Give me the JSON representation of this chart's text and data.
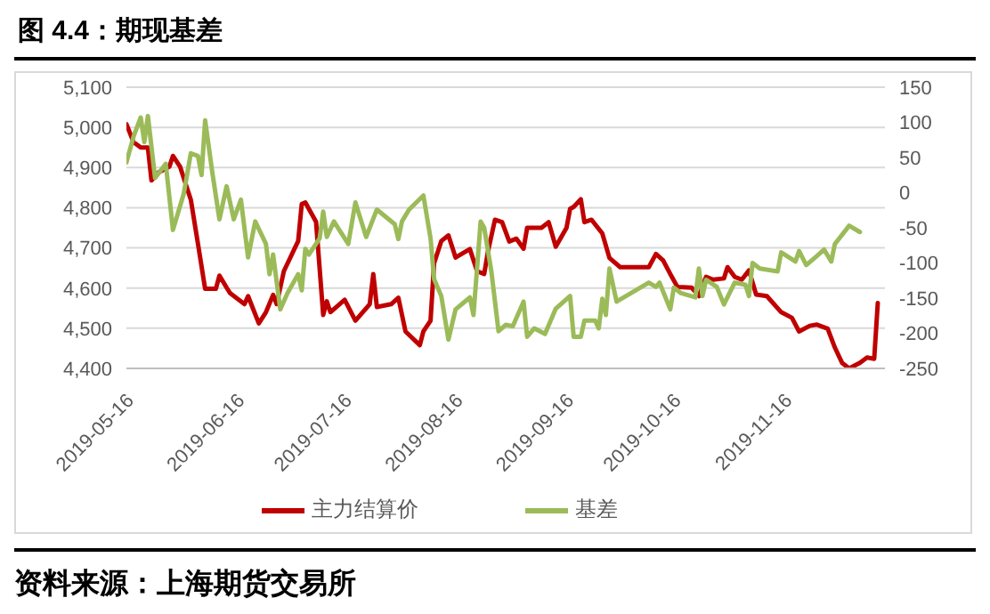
{
  "chart_data": {
    "type": "line",
    "title": "图 4.4：期现基差",
    "annotations": [
      "资料来源：上海期货交易所"
    ],
    "xlim": [
      "2019-05-16",
      "2019-12-14"
    ],
    "xticks": [
      "2019-05-16",
      "2019-06-16",
      "2019-07-16",
      "2019-08-16",
      "2019-09-16",
      "2019-10-16",
      "2019-11-16"
    ],
    "ylim": [
      4400,
      5100
    ],
    "yticks": [
      {
        "value": 4400,
        "label": "4,400"
      },
      {
        "value": 4500,
        "label": "4,500"
      },
      {
        "value": 4600,
        "label": "4,600"
      },
      {
        "value": 4700,
        "label": "4,700"
      },
      {
        "value": 4800,
        "label": "4,800"
      },
      {
        "value": 4900,
        "label": "4,900"
      },
      {
        "value": 5000,
        "label": "5,000"
      },
      {
        "value": 5100,
        "label": "5,100"
      }
    ],
    "y2lim": [
      -250,
      150
    ],
    "y2ticks": [
      -250,
      -200,
      -150,
      -100,
      -50,
      0,
      50,
      100,
      150
    ],
    "grid": "y",
    "legend": "bottom",
    "marker": "none",
    "line_style": "solid",
    "series": [
      {
        "name": "主力结算价",
        "color": "#c00000",
        "x": [
          "2019-05-16",
          "2019-05-18",
          "2019-05-20",
          "2019-05-22",
          "2019-05-23",
          "2019-05-25",
          "2019-05-28",
          "2019-05-29",
          "2019-05-31",
          "2019-06-03",
          "2019-06-05",
          "2019-06-07",
          "2019-06-10",
          "2019-06-11",
          "2019-06-13",
          "2019-06-14",
          "2019-06-18",
          "2019-06-19",
          "2019-06-22",
          "2019-06-24",
          "2019-06-26",
          "2019-06-27",
          "2019-06-29",
          "2019-07-03",
          "2019-07-04",
          "2019-07-05",
          "2019-07-08",
          "2019-07-10",
          "2019-07-11",
          "2019-07-12",
          "2019-07-16",
          "2019-07-19",
          "2019-07-23",
          "2019-07-24",
          "2019-07-25",
          "2019-07-29",
          "2019-07-31",
          "2019-08-02",
          "2019-08-06",
          "2019-08-07",
          "2019-08-09",
          "2019-08-10",
          "2019-08-12",
          "2019-08-14",
          "2019-08-16",
          "2019-08-20",
          "2019-08-22",
          "2019-08-24",
          "2019-08-25",
          "2019-08-27",
          "2019-08-29",
          "2019-08-31",
          "2019-09-02",
          "2019-09-04",
          "2019-09-05",
          "2019-09-07",
          "2019-09-09",
          "2019-09-11",
          "2019-09-13",
          "2019-09-16",
          "2019-09-17",
          "2019-09-18",
          "2019-09-20",
          "2019-09-21",
          "2019-09-23",
          "2019-09-26",
          "2019-09-28",
          "2019-10-01",
          "2019-10-09",
          "2019-10-11",
          "2019-10-13",
          "2019-10-15",
          "2019-10-17",
          "2019-10-21",
          "2019-10-23",
          "2019-10-25",
          "2019-10-27",
          "2019-10-30",
          "2019-10-31",
          "2019-11-02",
          "2019-11-04",
          "2019-11-06",
          "2019-11-08",
          "2019-11-11",
          "2019-11-15",
          "2019-11-18",
          "2019-11-20",
          "2019-11-23",
          "2019-11-25",
          "2019-11-28",
          "2019-11-30",
          "2019-12-02",
          "2019-12-04",
          "2019-12-07",
          "2019-12-09",
          "2019-12-11",
          "2019-12-12"
        ],
        "values": [
          5008,
          4963,
          4950,
          4950,
          4868,
          4888,
          4902,
          4929,
          4902,
          4820,
          4710,
          4598,
          4598,
          4631,
          4601,
          4587,
          4560,
          4580,
          4512,
          4540,
          4583,
          4560,
          4642,
          4717,
          4809,
          4813,
          4765,
          4533,
          4567,
          4540,
          4571,
          4519,
          4560,
          4635,
          4553,
          4560,
          4576,
          4492,
          4458,
          4492,
          4519,
          4662,
          4717,
          4731,
          4676,
          4697,
          4642,
          4635,
          4689,
          4770,
          4764,
          4716,
          4723,
          4698,
          4750,
          4750,
          4750,
          4764,
          4703,
          4750,
          4797,
          4802,
          4821,
          4764,
          4770,
          4736,
          4675,
          4652,
          4652,
          4685,
          4669,
          4635,
          4603,
          4601,
          4580,
          4628,
          4621,
          4624,
          4652,
          4628,
          4621,
          4644,
          4584,
          4580,
          4540,
          4526,
          4492,
          4506,
          4509,
          4499,
          4452,
          4414,
          4400,
          4414,
          4427,
          4424,
          4563
        ]
      },
      {
        "name": "基差",
        "color": "#9bbb59",
        "axis": "y2",
        "x": [
          "2019-05-16",
          "2019-05-18",
          "2019-05-20",
          "2019-05-21",
          "2019-05-22",
          "2019-05-24",
          "2019-05-27",
          "2019-05-29",
          "2019-06-01",
          "2019-06-03",
          "2019-06-05",
          "2019-06-06",
          "2019-06-07",
          "2019-06-09",
          "2019-06-11",
          "2019-06-13",
          "2019-06-15",
          "2019-06-17",
          "2019-06-19",
          "2019-06-21",
          "2019-06-24",
          "2019-06-25",
          "2019-06-26",
          "2019-06-28",
          "2019-06-30",
          "2019-07-03",
          "2019-07-04",
          "2019-07-05",
          "2019-07-06",
          "2019-07-09",
          "2019-07-10",
          "2019-07-11",
          "2019-07-13",
          "2019-07-17",
          "2019-07-19",
          "2019-07-22",
          "2019-07-25",
          "2019-07-30",
          "2019-07-31",
          "2019-08-01",
          "2019-08-03",
          "2019-08-07",
          "2019-08-09",
          "2019-08-10",
          "2019-08-12",
          "2019-08-14",
          "2019-08-16",
          "2019-08-20",
          "2019-08-21",
          "2019-08-23",
          "2019-08-24",
          "2019-08-26",
          "2019-08-28",
          "2019-08-30",
          "2019-09-01",
          "2019-09-04",
          "2019-09-05",
          "2019-09-07",
          "2019-09-10",
          "2019-09-13",
          "2019-09-17",
          "2019-09-18",
          "2019-09-20",
          "2019-09-21",
          "2019-09-24",
          "2019-09-25",
          "2019-09-26",
          "2019-09-27",
          "2019-09-28",
          "2019-09-30",
          "2019-10-09",
          "2019-10-11",
          "2019-10-12",
          "2019-10-15",
          "2019-10-16",
          "2019-10-18",
          "2019-10-22",
          "2019-10-23",
          "2019-10-24",
          "2019-10-25",
          "2019-10-28",
          "2019-10-30",
          "2019-11-02",
          "2019-11-05",
          "2019-11-06",
          "2019-11-07",
          "2019-11-09",
          "2019-11-14",
          "2019-11-15",
          "2019-11-19",
          "2019-11-20",
          "2019-11-22",
          "2019-11-25",
          "2019-11-27",
          "2019-11-29",
          "2019-11-30",
          "2019-12-04",
          "2019-12-07"
        ],
        "values": [
          43,
          80,
          107,
          72,
          109,
          21,
          41,
          -53,
          -2,
          56,
          52,
          25,
          103,
          29,
          -38,
          9,
          -38,
          -10,
          -92,
          -41,
          -73,
          -116,
          -88,
          -166,
          -143,
          -116,
          -139,
          -80,
          -88,
          -65,
          -27,
          -63,
          -41,
          -73,
          -14,
          -63,
          -24,
          -45,
          -66,
          -41,
          -24,
          -4,
          -65,
          -123,
          -147,
          -209,
          -166,
          -149,
          -174,
          -41,
          -50,
          -112,
          -197,
          -188,
          -190,
          -155,
          -205,
          -193,
          -201,
          -165,
          -147,
          -205,
          -205,
          -182,
          -182,
          -193,
          -151,
          -174,
          -108,
          -155,
          -128,
          -134,
          -128,
          -166,
          -135,
          -143,
          -149,
          -108,
          -147,
          -124,
          -134,
          -159,
          -128,
          -131,
          -147,
          -100,
          -108,
          -112,
          -85,
          -98,
          -83,
          -103,
          -90,
          -81,
          -98,
          -73,
          -47,
          -56
        ]
      }
    ]
  }
}
